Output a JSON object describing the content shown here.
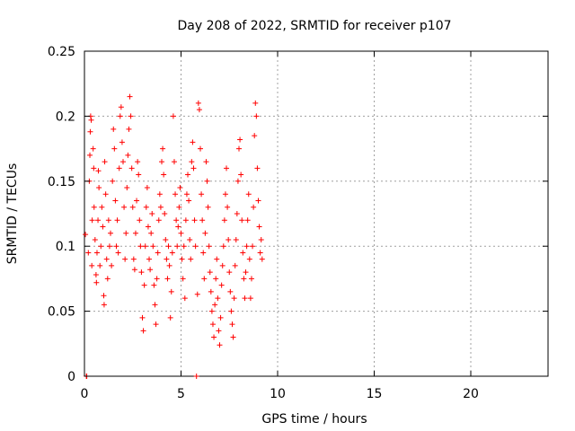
{
  "chart_data": {
    "type": "scatter",
    "title": "Day 208 of 2022, SRMTID for receiver p107",
    "xlabel": "GPS time / hours",
    "ylabel": "SRMTID / TECUs",
    "xlim": [
      0,
      24
    ],
    "ylim": [
      0,
      0.25
    ],
    "xticks": [
      0,
      5,
      10,
      15,
      20
    ],
    "xtick_labels": [
      "0",
      "5",
      "10",
      "15",
      "20"
    ],
    "yticks": [
      0,
      0.05,
      0.1,
      0.15,
      0.2,
      0.25
    ],
    "ytick_labels": [
      "0",
      "0.05",
      "0.1",
      "0.15",
      "0.2",
      "0.25"
    ],
    "grid": true,
    "marker": "+",
    "color": "#ff0000",
    "series": [
      {
        "name": "p107",
        "points": [
          [
            0.05,
            0.109
          ],
          [
            0.1,
            0.0
          ],
          [
            0.12,
            0.0
          ],
          [
            0.2,
            0.095
          ],
          [
            0.25,
            0.15
          ],
          [
            0.28,
            0.17
          ],
          [
            0.3,
            0.188
          ],
          [
            0.32,
            0.2
          ],
          [
            0.35,
            0.197
          ],
          [
            0.38,
            0.085
          ],
          [
            0.4,
            0.12
          ],
          [
            0.45,
            0.175
          ],
          [
            0.48,
            0.16
          ],
          [
            0.5,
            0.13
          ],
          [
            0.55,
            0.105
          ],
          [
            0.6,
            0.078
          ],
          [
            0.62,
            0.072
          ],
          [
            0.65,
            0.095
          ],
          [
            0.7,
            0.12
          ],
          [
            0.72,
            0.158
          ],
          [
            0.75,
            0.145
          ],
          [
            0.8,
            0.085
          ],
          [
            0.85,
            0.1
          ],
          [
            0.9,
            0.13
          ],
          [
            0.95,
            0.115
          ],
          [
            1.0,
            0.062
          ],
          [
            1.02,
            0.055
          ],
          [
            1.05,
            0.165
          ],
          [
            1.1,
            0.14
          ],
          [
            1.15,
            0.09
          ],
          [
            1.2,
            0.075
          ],
          [
            1.25,
            0.12
          ],
          [
            1.3,
            0.1
          ],
          [
            1.35,
            0.11
          ],
          [
            1.4,
            0.085
          ],
          [
            1.45,
            0.15
          ],
          [
            1.5,
            0.19
          ],
          [
            1.55,
            0.175
          ],
          [
            1.6,
            0.135
          ],
          [
            1.65,
            0.1
          ],
          [
            1.7,
            0.12
          ],
          [
            1.75,
            0.095
          ],
          [
            1.8,
            0.16
          ],
          [
            1.85,
            0.2
          ],
          [
            1.9,
            0.207
          ],
          [
            1.95,
            0.18
          ],
          [
            2.0,
            0.165
          ],
          [
            2.05,
            0.13
          ],
          [
            2.1,
            0.09
          ],
          [
            2.15,
            0.11
          ],
          [
            2.2,
            0.145
          ],
          [
            2.25,
            0.17
          ],
          [
            2.3,
            0.19
          ],
          [
            2.35,
            0.215
          ],
          [
            2.4,
            0.2
          ],
          [
            2.45,
            0.16
          ],
          [
            2.5,
            0.13
          ],
          [
            2.55,
            0.09
          ],
          [
            2.6,
            0.082
          ],
          [
            2.65,
            0.11
          ],
          [
            2.7,
            0.135
          ],
          [
            2.75,
            0.165
          ],
          [
            2.8,
            0.155
          ],
          [
            2.85,
            0.12
          ],
          [
            2.9,
            0.1
          ],
          [
            2.95,
            0.08
          ],
          [
            3.0,
            0.045
          ],
          [
            3.05,
            0.035
          ],
          [
            3.1,
            0.07
          ],
          [
            3.15,
            0.1
          ],
          [
            3.2,
            0.13
          ],
          [
            3.25,
            0.145
          ],
          [
            3.3,
            0.115
          ],
          [
            3.35,
            0.09
          ],
          [
            3.4,
            0.082
          ],
          [
            3.45,
            0.11
          ],
          [
            3.5,
            0.125
          ],
          [
            3.55,
            0.1
          ],
          [
            3.6,
            0.07
          ],
          [
            3.65,
            0.055
          ],
          [
            3.7,
            0.04
          ],
          [
            3.75,
            0.075
          ],
          [
            3.8,
            0.095
          ],
          [
            3.85,
            0.12
          ],
          [
            3.9,
            0.14
          ],
          [
            3.95,
            0.13
          ],
          [
            4.0,
            0.165
          ],
          [
            4.05,
            0.175
          ],
          [
            4.1,
            0.155
          ],
          [
            4.15,
            0.125
          ],
          [
            4.2,
            0.105
          ],
          [
            4.25,
            0.09
          ],
          [
            4.3,
            0.075
          ],
          [
            4.35,
            0.1
          ],
          [
            4.4,
            0.085
          ],
          [
            4.45,
            0.045
          ],
          [
            4.5,
            0.065
          ],
          [
            4.55,
            0.095
          ],
          [
            4.6,
            0.2
          ],
          [
            4.65,
            0.165
          ],
          [
            4.7,
            0.14
          ],
          [
            4.75,
            0.12
          ],
          [
            4.8,
            0.1
          ],
          [
            4.85,
            0.115
          ],
          [
            4.9,
            0.13
          ],
          [
            4.95,
            0.145
          ],
          [
            5.0,
            0.11
          ],
          [
            5.05,
            0.09
          ],
          [
            5.1,
            0.075
          ],
          [
            5.15,
            0.1
          ],
          [
            5.2,
            0.06
          ],
          [
            5.25,
            0.12
          ],
          [
            5.3,
            0.14
          ],
          [
            5.35,
            0.155
          ],
          [
            5.4,
            0.135
          ],
          [
            5.45,
            0.105
          ],
          [
            5.5,
            0.09
          ],
          [
            5.55,
            0.165
          ],
          [
            5.6,
            0.18
          ],
          [
            5.65,
            0.16
          ],
          [
            5.7,
            0.12
          ],
          [
            5.75,
            0.1
          ],
          [
            5.8,
            0.0
          ],
          [
            5.85,
            0.063
          ],
          [
            5.9,
            0.21
          ],
          [
            5.95,
            0.205
          ],
          [
            6.0,
            0.175
          ],
          [
            6.05,
            0.14
          ],
          [
            6.1,
            0.12
          ],
          [
            6.15,
            0.095
          ],
          [
            6.2,
            0.075
          ],
          [
            6.25,
            0.11
          ],
          [
            6.3,
            0.165
          ],
          [
            6.35,
            0.15
          ],
          [
            6.4,
            0.13
          ],
          [
            6.45,
            0.1
          ],
          [
            6.5,
            0.08
          ],
          [
            6.55,
            0.065
          ],
          [
            6.6,
            0.05
          ],
          [
            6.65,
            0.04
          ],
          [
            6.7,
            0.03
          ],
          [
            6.75,
            0.055
          ],
          [
            6.8,
            0.075
          ],
          [
            6.85,
            0.09
          ],
          [
            6.9,
            0.06
          ],
          [
            6.95,
            0.035
          ],
          [
            7.0,
            0.024
          ],
          [
            7.05,
            0.045
          ],
          [
            7.1,
            0.07
          ],
          [
            7.15,
            0.085
          ],
          [
            7.2,
            0.1
          ],
          [
            7.25,
            0.12
          ],
          [
            7.3,
            0.14
          ],
          [
            7.35,
            0.16
          ],
          [
            7.4,
            0.13
          ],
          [
            7.45,
            0.105
          ],
          [
            7.5,
            0.08
          ],
          [
            7.55,
            0.065
          ],
          [
            7.6,
            0.05
          ],
          [
            7.65,
            0.04
          ],
          [
            7.7,
            0.03
          ],
          [
            7.75,
            0.06
          ],
          [
            7.8,
            0.085
          ],
          [
            7.85,
            0.105
          ],
          [
            7.9,
            0.125
          ],
          [
            7.95,
            0.15
          ],
          [
            8.0,
            0.175
          ],
          [
            8.05,
            0.182
          ],
          [
            8.1,
            0.155
          ],
          [
            8.15,
            0.12
          ],
          [
            8.2,
            0.095
          ],
          [
            8.25,
            0.075
          ],
          [
            8.3,
            0.06
          ],
          [
            8.35,
            0.08
          ],
          [
            8.4,
            0.1
          ],
          [
            8.45,
            0.12
          ],
          [
            8.5,
            0.14
          ],
          [
            8.55,
            0.09
          ],
          [
            8.6,
            0.06
          ],
          [
            8.65,
            0.075
          ],
          [
            8.7,
            0.1
          ],
          [
            8.75,
            0.13
          ],
          [
            8.8,
            0.185
          ],
          [
            8.85,
            0.21
          ],
          [
            8.9,
            0.2
          ],
          [
            8.95,
            0.16
          ],
          [
            9.0,
            0.135
          ],
          [
            9.05,
            0.115
          ],
          [
            9.1,
            0.095
          ],
          [
            9.15,
            0.105
          ],
          [
            9.2,
            0.09
          ]
        ]
      }
    ]
  }
}
